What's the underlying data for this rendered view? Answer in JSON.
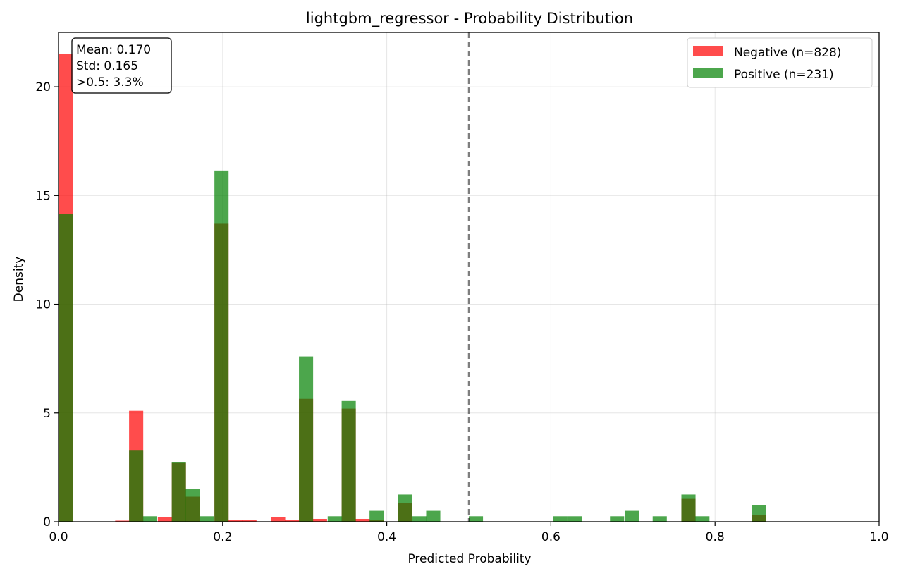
{
  "chart_data": {
    "type": "bar",
    "title": "lightgbm_regressor - Probability Distribution",
    "xlabel": "Predicted Probability",
    "ylabel": "Density",
    "xlim": [
      0,
      1.0
    ],
    "ylim": [
      0,
      22.5
    ],
    "xticks": [
      0.0,
      0.2,
      0.4,
      0.6,
      0.8,
      1.0
    ],
    "xtick_labels": [
      "0.0",
      "0.2",
      "0.4",
      "0.6",
      "0.8",
      "1.0"
    ],
    "yticks": [
      0,
      5,
      10,
      15,
      20
    ],
    "ytick_labels": [
      "0",
      "5",
      "10",
      "15",
      "20"
    ],
    "grid": true,
    "legend_position": "top-right",
    "bin_width": 0.01724,
    "threshold": 0.5,
    "series": [
      {
        "name": "Negative (n=828)",
        "color": "#ff0000",
        "bins": [
          {
            "x": 0.0,
            "value": 21.5
          },
          {
            "x": 0.069,
            "value": 0.05
          },
          {
            "x": 0.086,
            "value": 5.1
          },
          {
            "x": 0.121,
            "value": 0.2
          },
          {
            "x": 0.138,
            "value": 2.7
          },
          {
            "x": 0.155,
            "value": 1.15
          },
          {
            "x": 0.19,
            "value": 13.7
          },
          {
            "x": 0.207,
            "value": 0.07
          },
          {
            "x": 0.224,
            "value": 0.07
          },
          {
            "x": 0.259,
            "value": 0.2
          },
          {
            "x": 0.276,
            "value": 0.07
          },
          {
            "x": 0.293,
            "value": 5.65
          },
          {
            "x": 0.31,
            "value": 0.13
          },
          {
            "x": 0.345,
            "value": 5.2
          },
          {
            "x": 0.362,
            "value": 0.13
          },
          {
            "x": 0.379,
            "value": 0.07
          },
          {
            "x": 0.414,
            "value": 0.85
          },
          {
            "x": 0.759,
            "value": 1.05
          },
          {
            "x": 0.845,
            "value": 0.3
          }
        ]
      },
      {
        "name": "Positive (n=231)",
        "color": "#008000",
        "bins": [
          {
            "x": 0.0,
            "value": 14.15
          },
          {
            "x": 0.086,
            "value": 3.3
          },
          {
            "x": 0.103,
            "value": 0.25
          },
          {
            "x": 0.138,
            "value": 2.75
          },
          {
            "x": 0.155,
            "value": 1.5
          },
          {
            "x": 0.172,
            "value": 0.25
          },
          {
            "x": 0.19,
            "value": 16.15
          },
          {
            "x": 0.293,
            "value": 7.6
          },
          {
            "x": 0.328,
            "value": 0.25
          },
          {
            "x": 0.345,
            "value": 5.55
          },
          {
            "x": 0.379,
            "value": 0.5
          },
          {
            "x": 0.414,
            "value": 1.25
          },
          {
            "x": 0.431,
            "value": 0.25
          },
          {
            "x": 0.448,
            "value": 0.5
          },
          {
            "x": 0.5,
            "value": 0.25
          },
          {
            "x": 0.603,
            "value": 0.25
          },
          {
            "x": 0.621,
            "value": 0.25
          },
          {
            "x": 0.672,
            "value": 0.25
          },
          {
            "x": 0.69,
            "value": 0.5
          },
          {
            "x": 0.724,
            "value": 0.25
          },
          {
            "x": 0.759,
            "value": 1.25
          },
          {
            "x": 0.776,
            "value": 0.25
          },
          {
            "x": 0.845,
            "value": 0.75
          }
        ]
      }
    ],
    "stats_box": {
      "lines": [
        "Mean: 0.170",
        "Std: 0.165",
        ">0.5: 3.3%"
      ],
      "position": "top-left"
    }
  }
}
